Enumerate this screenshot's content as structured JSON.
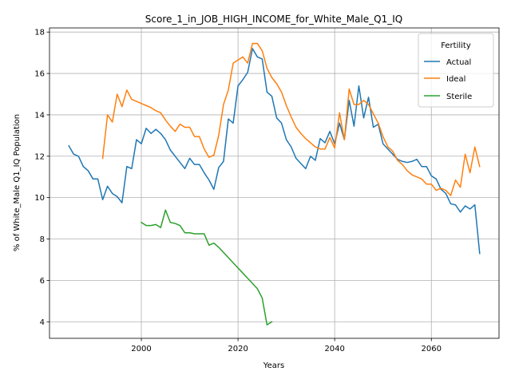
{
  "chart_data": {
    "type": "line",
    "title": "Score_1_in_JOB_HIGH_INCOME_for_White_Male_Q1_IQ",
    "xlabel": "Years",
    "ylabel": "% of White_Male Q1_IQ Population",
    "xlim": [
      1981,
      2074
    ],
    "ylim": [
      3.2,
      18.2
    ],
    "xticks": [
      2000,
      2020,
      2040,
      2060
    ],
    "yticks": [
      4,
      6,
      8,
      10,
      12,
      14,
      16,
      18
    ],
    "grid": true,
    "legend": {
      "title": "Fertility",
      "position": "top-right"
    },
    "series": [
      {
        "name": "Actual",
        "color": "#1f77b4",
        "points": [
          [
            1985,
            12.5
          ],
          [
            1986,
            12.1
          ],
          [
            1987,
            12.0
          ],
          [
            1988,
            11.5
          ],
          [
            1989,
            11.3
          ],
          [
            1990,
            10.9
          ],
          [
            1991,
            10.9
          ],
          [
            1992,
            9.9
          ],
          [
            1993,
            10.55
          ],
          [
            1994,
            10.2
          ],
          [
            1995,
            10.05
          ],
          [
            1996,
            9.75
          ],
          [
            1997,
            11.5
          ],
          [
            1998,
            11.4
          ],
          [
            1999,
            12.8
          ],
          [
            2000,
            12.6
          ],
          [
            2001,
            13.35
          ],
          [
            2002,
            13.1
          ],
          [
            2003,
            13.3
          ],
          [
            2004,
            13.1
          ],
          [
            2005,
            12.8
          ],
          [
            2006,
            12.3
          ],
          [
            2007,
            12.0
          ],
          [
            2008,
            11.7
          ],
          [
            2009,
            11.4
          ],
          [
            2010,
            11.9
          ],
          [
            2011,
            11.6
          ],
          [
            2012,
            11.6
          ],
          [
            2013,
            11.2
          ],
          [
            2014,
            10.85
          ],
          [
            2015,
            10.4
          ],
          [
            2016,
            11.45
          ],
          [
            2017,
            11.75
          ],
          [
            2018,
            13.8
          ],
          [
            2019,
            13.6
          ],
          [
            2020,
            15.4
          ],
          [
            2021,
            15.7
          ],
          [
            2022,
            16.05
          ],
          [
            2023,
            17.2
          ],
          [
            2024,
            16.8
          ],
          [
            2025,
            16.7
          ],
          [
            2026,
            15.1
          ],
          [
            2027,
            14.9
          ],
          [
            2028,
            13.85
          ],
          [
            2029,
            13.6
          ],
          [
            2030,
            12.8
          ],
          [
            2031,
            12.45
          ],
          [
            2032,
            11.9
          ],
          [
            2033,
            11.65
          ],
          [
            2034,
            11.4
          ],
          [
            2035,
            12.0
          ],
          [
            2036,
            11.8
          ],
          [
            2037,
            12.85
          ],
          [
            2038,
            12.65
          ],
          [
            2039,
            13.2
          ],
          [
            2040,
            12.6
          ],
          [
            2041,
            13.6
          ],
          [
            2042,
            12.8
          ],
          [
            2043,
            14.7
          ],
          [
            2044,
            13.45
          ],
          [
            2045,
            15.4
          ],
          [
            2046,
            13.85
          ],
          [
            2047,
            14.85
          ],
          [
            2048,
            13.4
          ],
          [
            2049,
            13.55
          ],
          [
            2050,
            12.6
          ],
          [
            2051,
            12.35
          ],
          [
            2052,
            12.1
          ],
          [
            2053,
            11.85
          ],
          [
            2054,
            11.75
          ],
          [
            2055,
            11.7
          ],
          [
            2056,
            11.75
          ],
          [
            2057,
            11.85
          ],
          [
            2058,
            11.5
          ],
          [
            2059,
            11.5
          ],
          [
            2060,
            11.05
          ],
          [
            2061,
            10.9
          ],
          [
            2062,
            10.4
          ],
          [
            2063,
            10.2
          ],
          [
            2064,
            9.7
          ],
          [
            2065,
            9.65
          ],
          [
            2066,
            9.3
          ],
          [
            2067,
            9.6
          ],
          [
            2068,
            9.45
          ],
          [
            2069,
            9.65
          ],
          [
            2070,
            7.3
          ]
        ]
      },
      {
        "name": "Ideal",
        "color": "#ff7f0e",
        "points": [
          [
            1992,
            11.9
          ],
          [
            1993,
            14.0
          ],
          [
            1994,
            13.65
          ],
          [
            1995,
            15.0
          ],
          [
            1996,
            14.4
          ],
          [
            1997,
            15.2
          ],
          [
            1998,
            14.75
          ],
          [
            1999,
            14.65
          ],
          [
            2000,
            14.55
          ],
          [
            2001,
            14.45
          ],
          [
            2002,
            14.35
          ],
          [
            2003,
            14.2
          ],
          [
            2004,
            14.1
          ],
          [
            2005,
            13.75
          ],
          [
            2006,
            13.45
          ],
          [
            2007,
            13.2
          ],
          [
            2008,
            13.55
          ],
          [
            2009,
            13.4
          ],
          [
            2010,
            13.4
          ],
          [
            2011,
            12.95
          ],
          [
            2012,
            12.95
          ],
          [
            2013,
            12.35
          ],
          [
            2014,
            11.95
          ],
          [
            2015,
            12.05
          ],
          [
            2016,
            13.0
          ],
          [
            2017,
            14.5
          ],
          [
            2018,
            15.2
          ],
          [
            2019,
            16.5
          ],
          [
            2020,
            16.65
          ],
          [
            2021,
            16.8
          ],
          [
            2022,
            16.5
          ],
          [
            2023,
            17.45
          ],
          [
            2024,
            17.45
          ],
          [
            2025,
            17.1
          ],
          [
            2026,
            16.25
          ],
          [
            2027,
            15.8
          ],
          [
            2028,
            15.5
          ],
          [
            2029,
            15.1
          ],
          [
            2030,
            14.45
          ],
          [
            2031,
            13.9
          ],
          [
            2032,
            13.4
          ],
          [
            2033,
            13.1
          ],
          [
            2034,
            12.85
          ],
          [
            2035,
            12.65
          ],
          [
            2036,
            12.45
          ],
          [
            2037,
            12.35
          ],
          [
            2038,
            12.35
          ],
          [
            2039,
            12.9
          ],
          [
            2040,
            12.4
          ],
          [
            2041,
            14.1
          ],
          [
            2042,
            12.8
          ],
          [
            2043,
            15.25
          ],
          [
            2044,
            14.5
          ],
          [
            2045,
            14.5
          ],
          [
            2046,
            14.7
          ],
          [
            2047,
            14.5
          ],
          [
            2048,
            14.05
          ],
          [
            2049,
            13.6
          ],
          [
            2050,
            12.95
          ],
          [
            2051,
            12.45
          ],
          [
            2052,
            12.25
          ],
          [
            2053,
            11.8
          ],
          [
            2054,
            11.6
          ],
          [
            2055,
            11.3
          ],
          [
            2056,
            11.1
          ],
          [
            2057,
            11.0
          ],
          [
            2058,
            10.9
          ],
          [
            2059,
            10.65
          ],
          [
            2060,
            10.65
          ],
          [
            2061,
            10.35
          ],
          [
            2062,
            10.45
          ],
          [
            2063,
            10.35
          ],
          [
            2064,
            10.1
          ],
          [
            2065,
            10.85
          ],
          [
            2066,
            10.5
          ],
          [
            2067,
            12.1
          ],
          [
            2068,
            11.2
          ],
          [
            2069,
            12.45
          ],
          [
            2070,
            11.5
          ]
        ]
      },
      {
        "name": "Sterile",
        "color": "#2ca02c",
        "points": [
          [
            2000,
            8.8
          ],
          [
            2001,
            8.65
          ],
          [
            2002,
            8.65
          ],
          [
            2003,
            8.7
          ],
          [
            2004,
            8.55
          ],
          [
            2005,
            9.4
          ],
          [
            2006,
            8.8
          ],
          [
            2007,
            8.75
          ],
          [
            2008,
            8.65
          ],
          [
            2009,
            8.3
          ],
          [
            2010,
            8.3
          ],
          [
            2011,
            8.25
          ],
          [
            2012,
            8.25
          ],
          [
            2013,
            8.25
          ],
          [
            2014,
            7.7
          ],
          [
            2015,
            7.8
          ],
          [
            2016,
            7.6
          ],
          [
            2017,
            7.35
          ],
          [
            2018,
            7.1
          ],
          [
            2019,
            6.85
          ],
          [
            2020,
            6.6
          ],
          [
            2021,
            6.35
          ],
          [
            2022,
            6.1
          ],
          [
            2023,
            5.85
          ],
          [
            2024,
            5.6
          ],
          [
            2025,
            5.15
          ],
          [
            2026,
            3.85
          ],
          [
            2027,
            4.0
          ]
        ]
      }
    ]
  }
}
